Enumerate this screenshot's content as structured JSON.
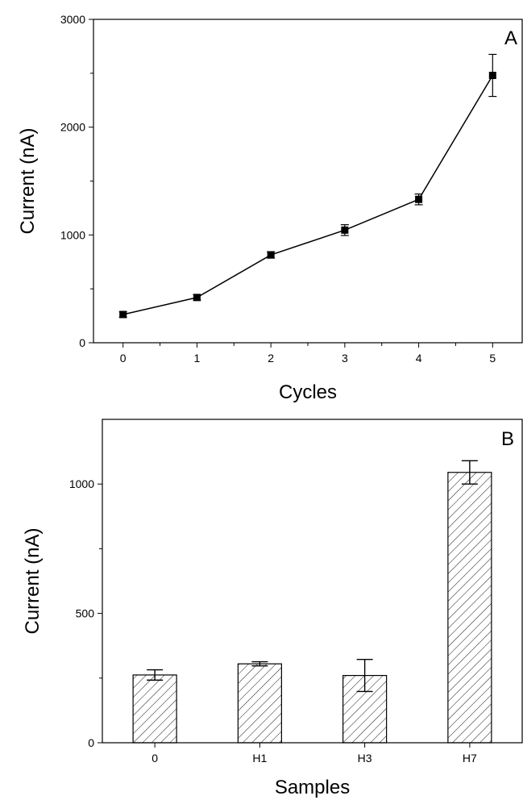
{
  "colors": {
    "ink": "#000000",
    "background": "#ffffff"
  },
  "chart_data": [
    {
      "type": "line",
      "panel_label": "A",
      "xlabel": "Cycles",
      "ylabel": "Current (nA)",
      "xlim": [
        -0.4,
        5.4
      ],
      "ylim": [
        0,
        3000
      ],
      "xticks": [
        0,
        1,
        2,
        3,
        4,
        5
      ],
      "yticks": [
        0,
        1000,
        2000,
        3000
      ],
      "grid": false,
      "marker": "square",
      "series": [
        {
          "x": [
            0,
            1,
            2,
            3,
            4,
            5
          ],
          "y": [
            262,
            420,
            815,
            1045,
            1330,
            2480
          ],
          "error": [
            25,
            25,
            30,
            50,
            50,
            195
          ]
        }
      ]
    },
    {
      "type": "bar",
      "panel_label": "B",
      "xlabel": "Samples",
      "ylabel": "Current (nA)",
      "categories": [
        "0",
        "H1",
        "H3",
        "H7"
      ],
      "values": [
        262,
        305,
        260,
        1045
      ],
      "error": [
        20,
        8,
        62,
        45
      ],
      "ylim": [
        0,
        1250
      ],
      "yticks": [
        0,
        500,
        1000
      ],
      "grid": false,
      "fill": "diagonal-hatch"
    }
  ]
}
